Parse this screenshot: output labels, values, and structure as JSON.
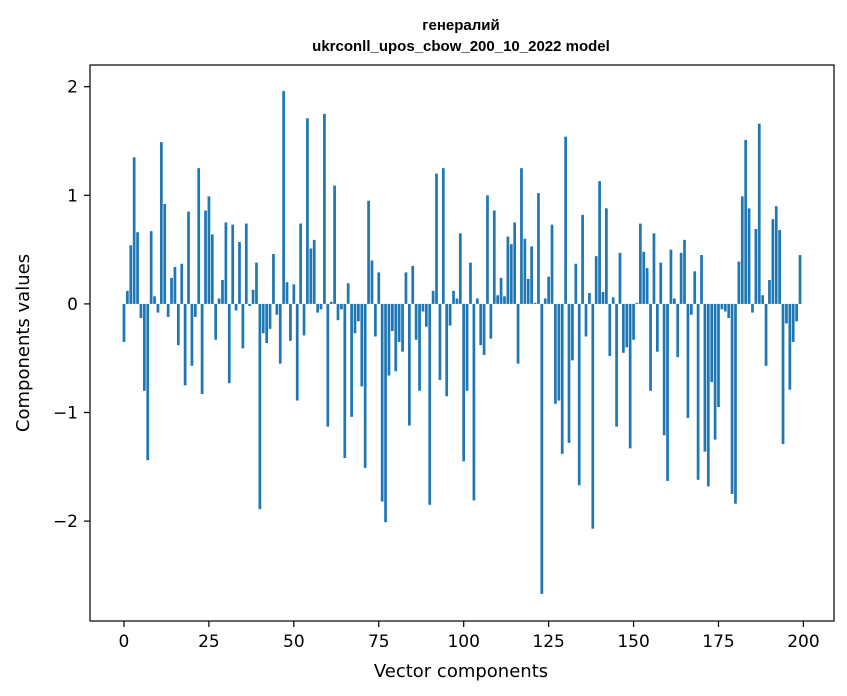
{
  "chart_data": {
    "type": "bar",
    "title": "генералий",
    "subtitle": "ukrconll_upos_cbow_200_10_2022 model",
    "xlabel": "Vector components",
    "ylabel": "Components values",
    "xlim": [
      -10,
      209
    ],
    "ylim": [
      -2.92,
      2.2
    ],
    "xticks": [
      0,
      25,
      50,
      75,
      100,
      125,
      150,
      175,
      200
    ],
    "yticks": [
      -2,
      -1,
      0,
      1,
      2
    ],
    "ytick_labels": [
      "−2",
      "−1",
      "0",
      "1",
      "2"
    ],
    "grid": false,
    "color": "#1f77b4",
    "x": [
      0,
      1,
      2,
      3,
      4,
      5,
      6,
      7,
      8,
      9,
      10,
      11,
      12,
      13,
      14,
      15,
      16,
      17,
      18,
      19,
      20,
      21,
      22,
      23,
      24,
      25,
      26,
      27,
      28,
      29,
      30,
      31,
      32,
      33,
      34,
      35,
      36,
      37,
      38,
      39,
      40,
      41,
      42,
      43,
      44,
      45,
      46,
      47,
      48,
      49,
      50,
      51,
      52,
      53,
      54,
      55,
      56,
      57,
      58,
      59,
      60,
      61,
      62,
      63,
      64,
      65,
      66,
      67,
      68,
      69,
      70,
      71,
      72,
      73,
      74,
      75,
      76,
      77,
      78,
      79,
      80,
      81,
      82,
      83,
      84,
      85,
      86,
      87,
      88,
      89,
      90,
      91,
      92,
      93,
      94,
      95,
      96,
      97,
      98,
      99,
      100,
      101,
      102,
      103,
      104,
      105,
      106,
      107,
      108,
      109,
      110,
      111,
      112,
      113,
      114,
      115,
      116,
      117,
      118,
      119,
      120,
      121,
      122,
      123,
      124,
      125,
      126,
      127,
      128,
      129,
      130,
      131,
      132,
      133,
      134,
      135,
      136,
      137,
      138,
      139,
      140,
      141,
      142,
      143,
      144,
      145,
      146,
      147,
      148,
      149,
      150,
      151,
      152,
      153,
      154,
      155,
      156,
      157,
      158,
      159,
      160,
      161,
      162,
      163,
      164,
      165,
      166,
      167,
      168,
      169,
      170,
      171,
      172,
      173,
      174,
      175,
      176,
      177,
      178,
      179,
      180,
      181,
      182,
      183,
      184,
      185,
      186,
      187,
      188,
      189,
      190,
      191,
      192,
      193,
      194,
      195,
      196,
      197,
      198,
      199
    ],
    "values": [
      -0.35,
      0.12,
      0.54,
      1.35,
      0.66,
      -0.13,
      -0.8,
      -1.44,
      0.67,
      0.07,
      -0.08,
      1.49,
      0.92,
      -0.12,
      0.24,
      0.34,
      -0.38,
      0.37,
      -0.75,
      0.85,
      -0.57,
      -0.12,
      1.25,
      -0.83,
      0.86,
      0.99,
      0.64,
      -0.33,
      0.05,
      0.22,
      0.75,
      -0.73,
      0.73,
      -0.06,
      0.57,
      -0.41,
      0.74,
      -0.02,
      0.13,
      0.38,
      -1.89,
      -0.27,
      -0.36,
      -0.23,
      0.46,
      -0.1,
      -0.55,
      1.96,
      0.2,
      -0.34,
      0.18,
      -0.89,
      0.74,
      -0.29,
      1.71,
      0.51,
      0.59,
      -0.08,
      -0.05,
      1.75,
      -1.13,
      0.02,
      1.09,
      -0.15,
      -0.05,
      -1.42,
      0.19,
      -1.04,
      -0.27,
      -0.16,
      -0.76,
      -1.51,
      0.95,
      0.4,
      -0.3,
      0.29,
      -1.82,
      -2.01,
      -0.66,
      -0.25,
      -0.62,
      -0.35,
      -0.44,
      0.29,
      -1.12,
      0.35,
      -0.33,
      -0.8,
      -0.07,
      -0.21,
      -1.85,
      0.12,
      1.2,
      -0.7,
      1.25,
      -0.85,
      -0.2,
      0.12,
      0.05,
      0.65,
      -1.45,
      -0.8,
      0.38,
      -1.81,
      0.05,
      -0.38,
      -0.47,
      1.0,
      -0.32,
      0.86,
      0.08,
      0.24,
      0.07,
      0.62,
      0.55,
      0.75,
      -0.55,
      1.25,
      0.6,
      0.23,
      0.53,
      0.01,
      1.02,
      -2.67,
      0.05,
      0.25,
      0.73,
      -0.92,
      -0.89,
      -1.38,
      1.54,
      -1.28,
      -0.52,
      0.37,
      -1.67,
      0.82,
      -0.3,
      0.1,
      -2.07,
      0.44,
      1.13,
      0.11,
      0.88,
      -0.48,
      0.06,
      -1.13,
      0.47,
      -0.45,
      -0.4,
      -1.33,
      -0.33,
      0.01,
      0.74,
      0.48,
      0.33,
      -0.8,
      0.65,
      -0.44,
      0.38,
      -1.21,
      -1.63,
      0.5,
      0.05,
      -0.49,
      0.47,
      0.59,
      -1.05,
      -0.1,
      0.3,
      -1.62,
      0.45,
      -1.36,
      -1.68,
      -0.72,
      -1.25,
      -0.95,
      -0.05,
      -0.07,
      -0.13,
      -1.75,
      -1.84,
      0.39,
      0.99,
      1.51,
      0.88,
      -0.08,
      0.69,
      1.66,
      0.08,
      -0.57,
      0.22,
      0.78,
      0.9,
      0.68,
      -1.29,
      -0.18,
      -0.79,
      -0.35,
      -0.16,
      0.45
    ]
  }
}
